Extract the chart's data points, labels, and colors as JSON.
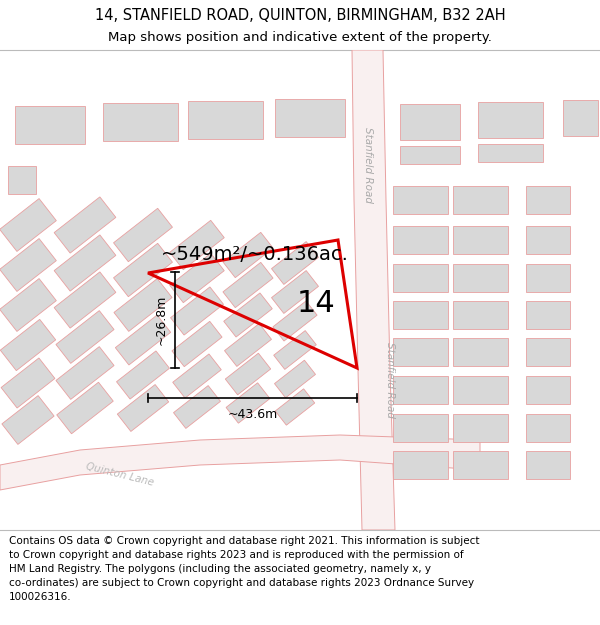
{
  "title_line1": "14, STANFIELD ROAD, QUINTON, BIRMINGHAM, B32 2AH",
  "title_line2": "Map shows position and indicative extent of the property.",
  "footer_text": "Contains OS data © Crown copyright and database right 2021. This information is subject\nto Crown copyright and database rights 2023 and is reproduced with the permission of\nHM Land Registry. The polygons (including the associated geometry, namely x, y\nco-ordinates) are subject to Crown copyright and database rights 2023 Ordnance Survey\n100026316.",
  "road_fill": "#f9f0f0",
  "road_edge": "#e8a0a0",
  "building_fill": "#d8d8d8",
  "building_edge": "#e8a0a0",
  "property_color": "#dd0000",
  "title_line1_fontsize": 10.5,
  "title_line2_fontsize": 9.5,
  "footer_fontsize": 7.5,
  "area_text": "~549m²/~0.136ac.",
  "area_fontsize": 14,
  "property_label": "14",
  "property_label_fontsize": 22,
  "dim_width_text": "~43.6m",
  "dim_height_text": "~26.8m",
  "dim_fontsize": 9,
  "road_label_color": "#aaaaaa",
  "road_label_fontsize": 7.5
}
